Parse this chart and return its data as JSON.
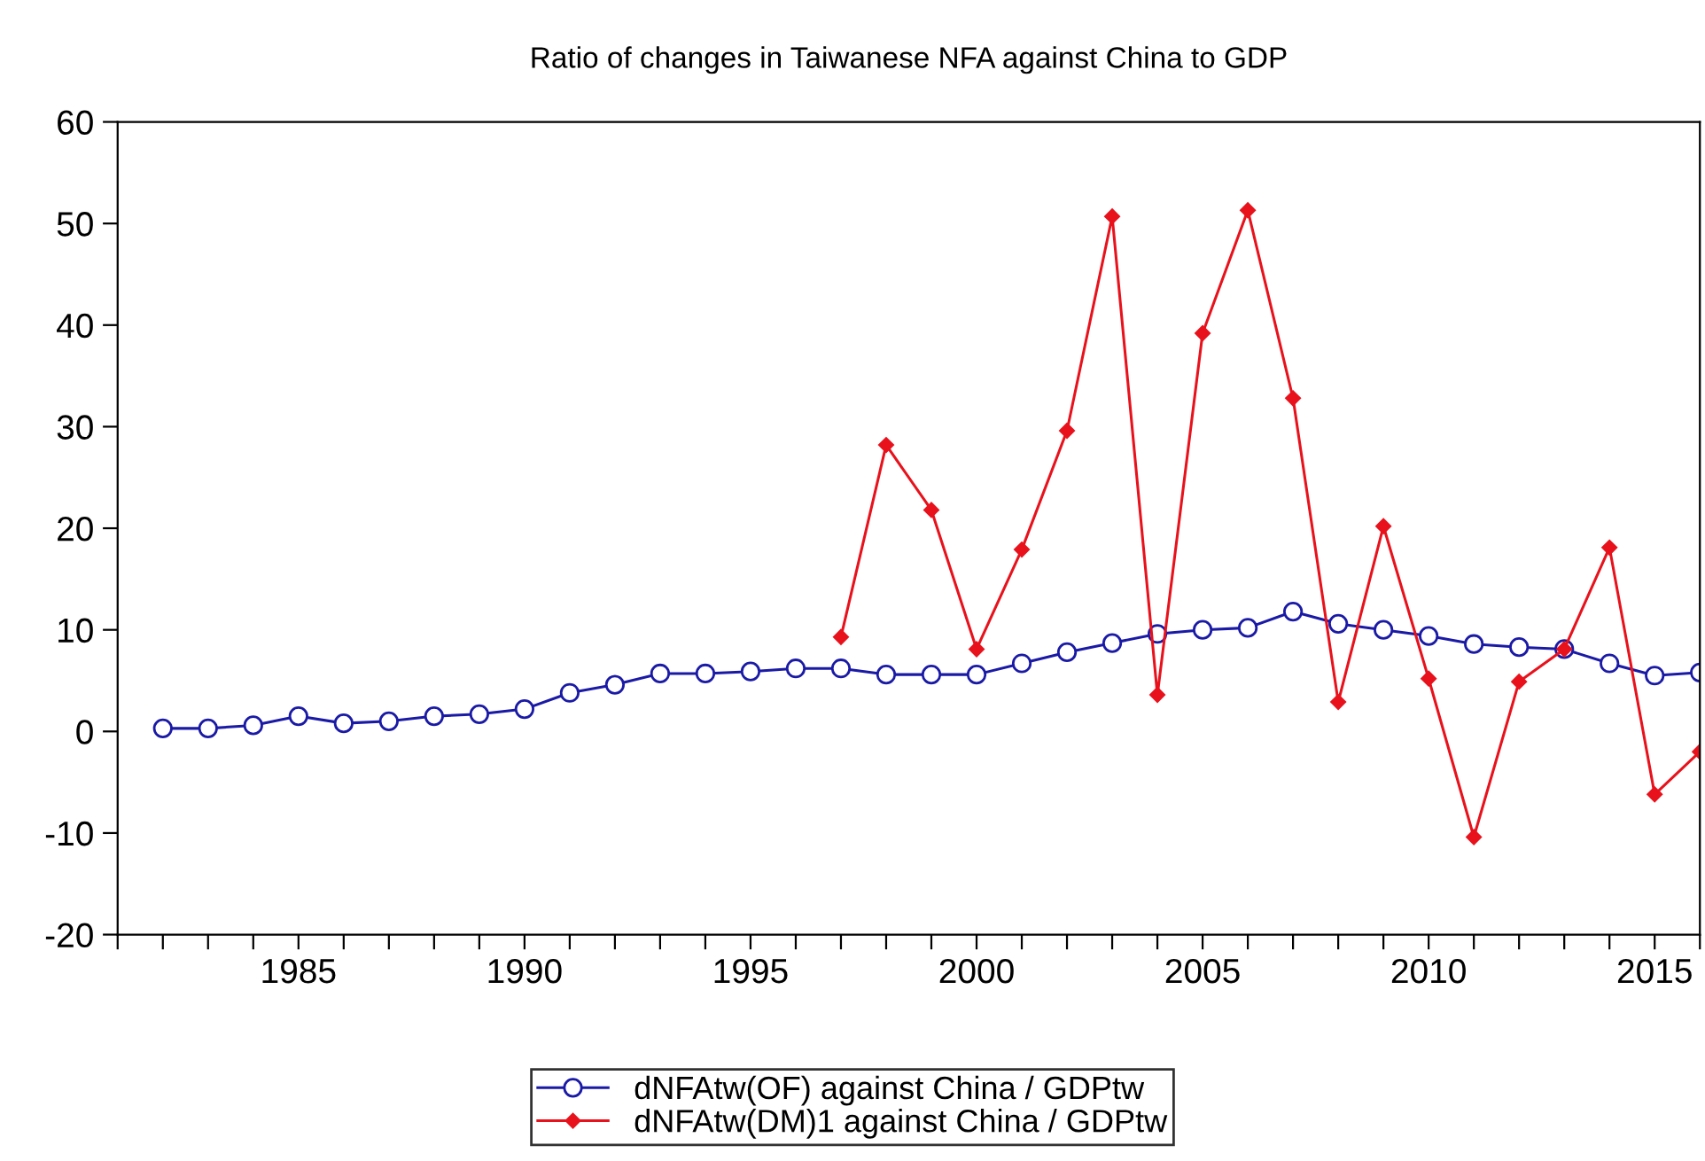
{
  "chart_data": {
    "type": "line",
    "title": "Ratio of changes in Taiwanese NFA against China to GDP",
    "x": [
      1982,
      1983,
      1984,
      1985,
      1986,
      1987,
      1988,
      1989,
      1990,
      1991,
      1992,
      1993,
      1994,
      1995,
      1996,
      1997,
      1998,
      1999,
      2000,
      2001,
      2002,
      2003,
      2004,
      2005,
      2006,
      2007,
      2008,
      2009,
      2010,
      2011,
      2012,
      2013,
      2014,
      2015,
      2016
    ],
    "series": [
      {
        "name": "dNFAtw(OF) against China / GDPtw",
        "color": "#1a1aa6",
        "marker": "circle",
        "values": [
          0.3,
          0.3,
          0.6,
          1.5,
          0.8,
          1.0,
          1.5,
          1.7,
          2.2,
          3.8,
          4.6,
          5.7,
          5.7,
          5.9,
          6.2,
          6.2,
          5.6,
          5.6,
          5.6,
          6.7,
          7.8,
          8.7,
          9.6,
          10.0,
          10.2,
          11.8,
          10.6,
          10.0,
          9.4,
          8.6,
          8.3,
          8.1,
          6.7,
          5.5,
          5.8
        ]
      },
      {
        "name": "dNFAtw(DM)1 against China / GDPtw",
        "color": "#e8121c",
        "marker": "diamond",
        "values": [
          null,
          null,
          null,
          null,
          null,
          null,
          null,
          null,
          null,
          null,
          null,
          null,
          null,
          null,
          null,
          9.3,
          28.2,
          21.8,
          8.1,
          17.9,
          29.6,
          50.7,
          3.6,
          39.2,
          51.3,
          32.8,
          2.9,
          20.2,
          5.2,
          -10.4,
          4.9,
          8.1,
          18.1,
          -6.2,
          -2.0
        ]
      }
    ],
    "xlim": [
      1981,
      2016
    ],
    "xticks": [
      {
        "value": 1981,
        "label": null
      },
      {
        "value": 1982,
        "label": null
      },
      {
        "value": 1983,
        "label": null
      },
      {
        "value": 1984,
        "label": null
      },
      1985,
      {
        "value": 1986,
        "label": null
      },
      {
        "value": 1987,
        "label": null
      },
      {
        "value": 1988,
        "label": null
      },
      {
        "value": 1989,
        "label": null
      },
      1990,
      {
        "value": 1991,
        "label": null
      },
      {
        "value": 1992,
        "label": null
      },
      {
        "value": 1993,
        "label": null
      },
      {
        "value": 1994,
        "label": null
      },
      1995,
      {
        "value": 1996,
        "label": null
      },
      {
        "value": 1997,
        "label": null
      },
      {
        "value": 1998,
        "label": null
      },
      {
        "value": 1999,
        "label": null
      },
      2000,
      {
        "value": 2001,
        "label": null
      },
      {
        "value": 2002,
        "label": null
      },
      {
        "value": 2003,
        "label": null
      },
      {
        "value": 2004,
        "label": null
      },
      2005,
      {
        "value": 2006,
        "label": null
      },
      {
        "value": 2007,
        "label": null
      },
      {
        "value": 2008,
        "label": null
      },
      {
        "value": 2009,
        "label": null
      },
      2010,
      {
        "value": 2011,
        "label": null
      },
      {
        "value": 2012,
        "label": null
      },
      {
        "value": 2013,
        "label": null
      },
      {
        "value": 2014,
        "label": null
      },
      2015,
      {
        "value": 2016,
        "label": null
      }
    ],
    "ylim": [
      -20,
      60
    ],
    "yticks": [
      -20,
      -10,
      0,
      10,
      20,
      30,
      40,
      50,
      60
    ],
    "grid": false,
    "legend": "bottom",
    "line_style": "solid"
  }
}
